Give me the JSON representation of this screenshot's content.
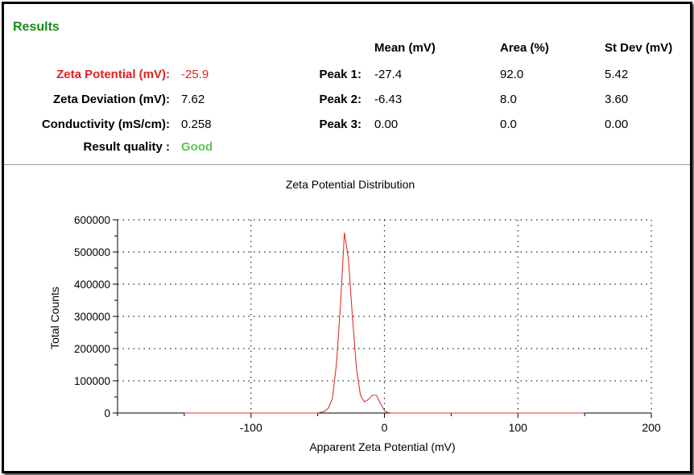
{
  "results": {
    "title": "Results",
    "columns": [
      "Mean (mV)",
      "Area (%)",
      "St Dev (mV)"
    ],
    "left_rows": [
      {
        "label": "Zeta Potential (mV):",
        "value": "-25.9"
      },
      {
        "label": "Zeta Deviation (mV):",
        "value": "7.62"
      },
      {
        "label": "Conductivity (mS/cm):",
        "value": "0.258"
      },
      {
        "label": "Result quality :",
        "value": "Good"
      }
    ],
    "peaks": [
      {
        "label": "Peak 1:",
        "mean": "-27.4",
        "area": "92.0",
        "stdev": "5.42"
      },
      {
        "label": "Peak 2:",
        "mean": "-6.43",
        "area": "8.0",
        "stdev": "3.60"
      },
      {
        "label": "Peak 3:",
        "mean": "0.00",
        "area": "0.0",
        "stdev": "0.00"
      }
    ],
    "colors": {
      "title": "#1a8a1a",
      "zeta_potential": "#e02020",
      "quality": "#5cc45c"
    }
  },
  "chart_data": {
    "type": "line",
    "title": "Zeta Potential Distribution",
    "xlabel": "Apparent Zeta Potential (mV)",
    "ylabel": "Total Counts",
    "xlim": [
      -200,
      200
    ],
    "ylim": [
      0,
      600000
    ],
    "xticks": [
      -100,
      0,
      100,
      200
    ],
    "yticks": [
      0,
      100000,
      200000,
      300000,
      400000,
      500000,
      600000
    ],
    "grid": true,
    "line_color": "#e03030",
    "series": [
      {
        "x": [
          -150,
          -50,
          -45,
          -42,
          -39,
          -36,
          -33,
          -30,
          -27,
          -24,
          -21,
          -18,
          -15,
          -12,
          -9,
          -6,
          -3,
          0,
          2,
          5,
          150
        ],
        "values": [
          0,
          0,
          5000,
          15000,
          45000,
          150000,
          330000,
          560000,
          480000,
          300000,
          140000,
          55000,
          35000,
          42000,
          55000,
          55000,
          30000,
          8000,
          2000,
          0,
          0
        ]
      }
    ]
  }
}
